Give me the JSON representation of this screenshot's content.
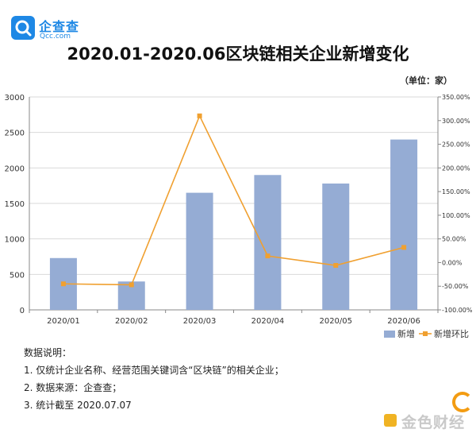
{
  "logo": {
    "name_cn": "企查查",
    "name_en": "Qcc.com",
    "icon": "qcc-logo-icon",
    "color": "#1e88e5"
  },
  "title": "2020.01-2020.06区块链相关企业新增变化",
  "unit": "（单位：家）",
  "chart_data": {
    "type": "bar",
    "categories": [
      "2020/01",
      "2020/02",
      "2020/03",
      "2020/04",
      "2020/05",
      "2020/06"
    ],
    "series": [
      {
        "name": "新增",
        "type": "bar",
        "axis": "left",
        "color": "#95acd4",
        "values": [
          730,
          400,
          1650,
          1900,
          1780,
          2400
        ]
      },
      {
        "name": "新增环比",
        "type": "line",
        "axis": "right",
        "color": "#f0a030",
        "values": [
          -45,
          -47,
          310,
          14,
          -6,
          32
        ]
      }
    ],
    "y_left": {
      "min": 0,
      "max": 3000,
      "ticks": [
        "0",
        "500",
        "1000",
        "1500",
        "2000",
        "2500",
        "3000"
      ]
    },
    "y_right": {
      "min": -100,
      "max": 350,
      "ticks": [
        "-100.00%",
        "-50.00%",
        "0.00%",
        "50.00%",
        "100.00%",
        "150.00%",
        "200.00%",
        "250.00%",
        "300.00%",
        "350.00%"
      ]
    },
    "grid": true,
    "legend": "bottom-right"
  },
  "notes": {
    "heading": "数据说明：",
    "items": [
      "1. 仅统计企业名称、经营范围关键词含“区块链”的相关企业；",
      "2. 数据来源：企查查；",
      "3. 统计截至 2020.07.07"
    ]
  },
  "watermark": {
    "text": "金色财经",
    "icon": "jinse-logo-icon"
  }
}
